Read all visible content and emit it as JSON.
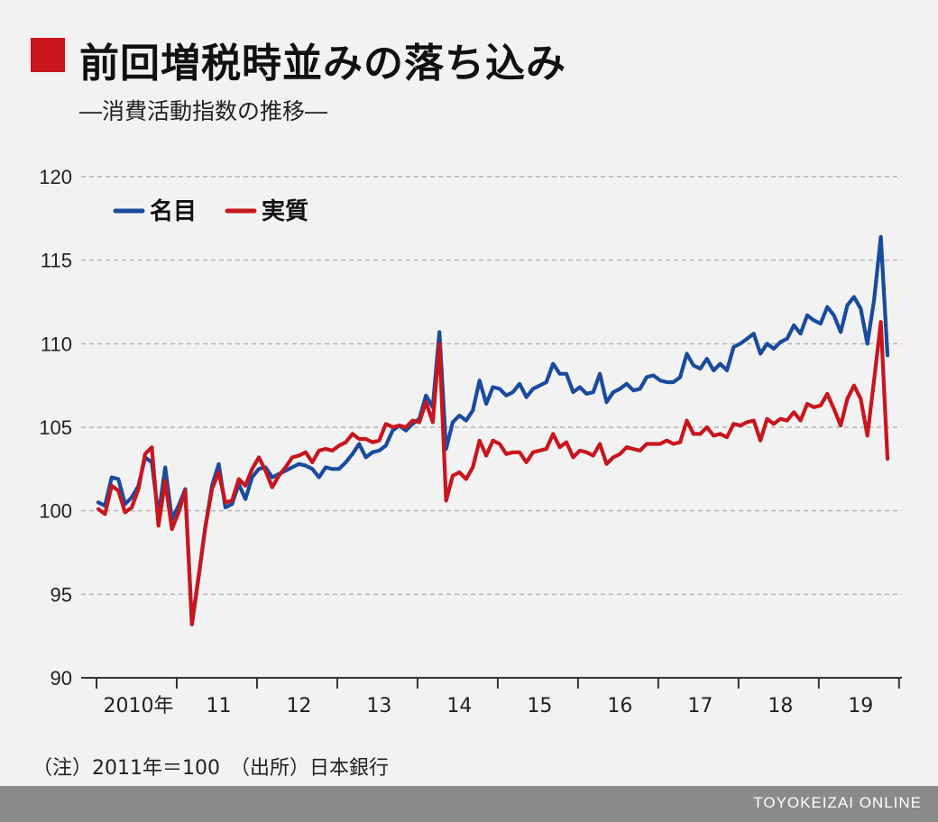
{
  "title": "前回増税時並みの落ち込み",
  "subtitle": "―消費活動指数の推移―",
  "note": "（注）2011年＝100　（出所）日本銀行",
  "brand": "TOYOKEIZAI ONLINE",
  "colors": {
    "nominal": "#1a4b9c",
    "real": "#c8161e",
    "accent": "#c8161e"
  },
  "chart_data": {
    "type": "line",
    "title": "",
    "xlabel": "",
    "ylabel": "",
    "ylim": [
      90,
      120
    ],
    "yticks": [
      90,
      95,
      100,
      105,
      110,
      115,
      120
    ],
    "grid": "horizontal dashed",
    "legend_position": "top-left",
    "x_start": "2010-01",
    "x_ticks": [
      "2010年",
      "11",
      "12",
      "13",
      "14",
      "15",
      "16",
      "17",
      "18",
      "19"
    ],
    "series": [
      {
        "name": "名目",
        "color": "#1a4b9c",
        "values": [
          100.5,
          100.3,
          102.0,
          101.9,
          100.4,
          100.8,
          101.5,
          103.2,
          102.9,
          99.7,
          102.6,
          99.5,
          100.3,
          101.3,
          93.2,
          96.0,
          99.0,
          101.5,
          102.8,
          100.2,
          100.4,
          101.6,
          100.7,
          102.0,
          102.5,
          102.6,
          102.0,
          102.2,
          102.4,
          102.6,
          102.8,
          102.7,
          102.5,
          102.0,
          102.6,
          102.5,
          102.5,
          102.9,
          103.4,
          104.0,
          103.2,
          103.5,
          103.6,
          103.9,
          104.8,
          105.1,
          104.8,
          105.2,
          105.5,
          106.9,
          106.2,
          110.7,
          103.7,
          105.3,
          105.7,
          105.4,
          106.0,
          107.8,
          106.4,
          107.4,
          107.3,
          106.9,
          107.1,
          107.6,
          106.8,
          107.3,
          107.5,
          107.7,
          108.8,
          108.2,
          108.2,
          107.1,
          107.4,
          107.0,
          107.1,
          108.2,
          106.5,
          107.1,
          107.3,
          107.6,
          107.2,
          107.3,
          108.0,
          108.1,
          107.8,
          107.7,
          107.7,
          108.0,
          109.4,
          108.7,
          108.5,
          109.1,
          108.4,
          108.8,
          108.4,
          109.8,
          110.0,
          110.3,
          110.6,
          109.4,
          110.0,
          109.7,
          110.1,
          110.3,
          111.1,
          110.6,
          111.7,
          111.4,
          111.2,
          112.2,
          111.7,
          110.7,
          112.3,
          112.8,
          112.1,
          110.0,
          112.6,
          116.4,
          109.3
        ]
      },
      {
        "name": "実質",
        "color": "#c8161e",
        "values": [
          100.1,
          99.8,
          101.5,
          101.2,
          99.9,
          100.2,
          101.3,
          103.4,
          103.8,
          99.1,
          101.8,
          98.9,
          99.9,
          101.2,
          93.2,
          96.1,
          99.0,
          101.3,
          102.3,
          100.5,
          100.6,
          101.9,
          101.5,
          102.5,
          103.2,
          102.4,
          101.4,
          102.1,
          102.6,
          103.2,
          103.3,
          103.5,
          102.9,
          103.6,
          103.7,
          103.6,
          103.9,
          104.1,
          104.6,
          104.3,
          104.3,
          104.1,
          104.2,
          105.2,
          105.0,
          105.1,
          105.0,
          105.4,
          105.3,
          106.5,
          105.3,
          110.0,
          100.6,
          102.1,
          102.3,
          101.9,
          102.6,
          104.2,
          103.3,
          104.2,
          104.0,
          103.4,
          103.5,
          103.5,
          102.9,
          103.5,
          103.6,
          103.7,
          104.6,
          103.8,
          104.1,
          103.2,
          103.6,
          103.5,
          103.3,
          104.0,
          102.8,
          103.2,
          103.4,
          103.8,
          103.7,
          103.6,
          104.0,
          104.0,
          104.0,
          104.2,
          104.0,
          104.1,
          105.4,
          104.6,
          104.6,
          105.0,
          104.5,
          104.6,
          104.4,
          105.2,
          105.1,
          105.3,
          105.4,
          104.2,
          105.5,
          105.2,
          105.5,
          105.4,
          105.9,
          105.4,
          106.4,
          106.2,
          106.3,
          107.0,
          106.1,
          105.1,
          106.7,
          107.5,
          106.7,
          104.5,
          107.8,
          111.3,
          103.1
        ]
      }
    ]
  }
}
